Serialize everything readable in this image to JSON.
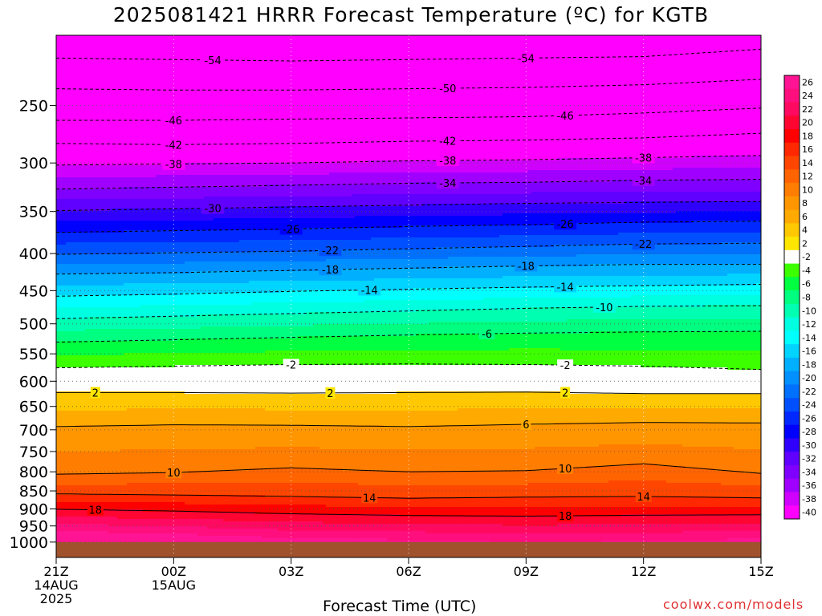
{
  "chart_data": {
    "type": "heatmap",
    "title": "2025081421 HRRR Forecast Temperature (ºC) for KGTB",
    "xlabel": "Forecast Time (UTC)",
    "ylabel": "",
    "credit": "coolwx.com/models",
    "x_ticks": [
      {
        "hours": 0,
        "lines": [
          "21Z",
          "14AUG",
          "2025"
        ]
      },
      {
        "hours": 3,
        "lines": [
          "00Z",
          "15AUG"
        ]
      },
      {
        "hours": 6,
        "lines": [
          "03Z"
        ]
      },
      {
        "hours": 9,
        "lines": [
          "06Z"
        ]
      },
      {
        "hours": 12,
        "lines": [
          "09Z"
        ]
      },
      {
        "hours": 15,
        "lines": [
          "12Z"
        ]
      },
      {
        "hours": 18,
        "lines": [
          "15Z"
        ]
      }
    ],
    "x_range_hours": [
      0,
      18
    ],
    "y_scale": "log-pressure",
    "y_range_hpa": [
      1050,
      200
    ],
    "y_ticks": [
      250,
      300,
      350,
      400,
      450,
      500,
      550,
      600,
      650,
      700,
      750,
      800,
      850,
      900,
      950,
      1000
    ],
    "colorbar_labels": [
      26,
      24,
      22,
      20,
      18,
      16,
      14,
      12,
      10,
      8,
      6,
      4,
      2,
      -2,
      -4,
      -6,
      -8,
      -10,
      -12,
      -14,
      -16,
      -18,
      -20,
      -22,
      -24,
      -26,
      -28,
      -30,
      -32,
      -34,
      -36,
      -38,
      -40
    ],
    "colorbar_colors": [
      "#ff1493",
      "#ff0f7d",
      "#ff0a60",
      "#ff0532",
      "#ff0000",
      "#ff2800",
      "#ff4600",
      "#ff6400",
      "#ff7d00",
      "#ff9600",
      "#ffaa00",
      "#ffc800",
      "#ffe600",
      "#ffffff",
      "#3cff00",
      "#00ff40",
      "#00ff80",
      "#00ffb0",
      "#00ffe0",
      "#00ffff",
      "#00d4ff",
      "#00b0ff",
      "#0090ff",
      "#0070ff",
      "#0050ff",
      "#0028ff",
      "#0000ff",
      "#3000ff",
      "#6000ff",
      "#8000ff",
      "#a000ff",
      "#d000ff",
      "#ff00ff"
    ],
    "surface_color": "#a0522d",
    "surface_pressure_hpa": 1000,
    "contours": [
      {
        "value": -54,
        "labels": [
          {
            "h": 4.0,
            "t": "-54"
          },
          {
            "h": 12.0,
            "t": "-54"
          }
        ],
        "profile": [
          [
            0,
            215
          ],
          [
            3,
            216
          ],
          [
            6,
            217
          ],
          [
            9,
            216
          ],
          [
            12,
            215
          ],
          [
            15,
            214
          ],
          [
            18,
            209
          ]
        ]
      },
      {
        "value": -50,
        "labels": [
          {
            "h": 10.0,
            "t": "-50"
          }
        ],
        "profile": [
          [
            0,
            237
          ],
          [
            3,
            238
          ],
          [
            6,
            238
          ],
          [
            9,
            237
          ],
          [
            12,
            236
          ],
          [
            15,
            234
          ],
          [
            18,
            230
          ]
        ]
      },
      {
        "value": -46,
        "labels": [
          {
            "h": 3.0,
            "t": "-46"
          },
          {
            "h": 13.0,
            "t": "-46"
          }
        ],
        "profile": [
          [
            0,
            262
          ],
          [
            3,
            262
          ],
          [
            6,
            261
          ],
          [
            9,
            260
          ],
          [
            12,
            259
          ],
          [
            15,
            256
          ],
          [
            18,
            252
          ]
        ]
      },
      {
        "value": -42,
        "labels": [
          {
            "h": 3.0,
            "t": "-42"
          },
          {
            "h": 10.0,
            "t": "-42"
          }
        ],
        "profile": [
          [
            0,
            282
          ],
          [
            3,
            283
          ],
          [
            6,
            282
          ],
          [
            9,
            280
          ],
          [
            12,
            279
          ],
          [
            15,
            277
          ],
          [
            18,
            273
          ]
        ]
      },
      {
        "value": -38,
        "labels": [
          {
            "h": 3.0,
            "t": "-38"
          },
          {
            "h": 10.0,
            "t": "-38"
          },
          {
            "h": 15.0,
            "t": "-38"
          }
        ],
        "profile": [
          [
            0,
            302
          ],
          [
            3,
            301
          ],
          [
            6,
            300
          ],
          [
            9,
            298
          ],
          [
            12,
            297
          ],
          [
            15,
            295
          ],
          [
            18,
            293
          ]
        ]
      },
      {
        "value": -34,
        "labels": [
          {
            "h": 10.0,
            "t": "-34"
          },
          {
            "h": 15.0,
            "t": "-34"
          }
        ],
        "profile": [
          [
            0,
            326
          ],
          [
            3,
            324
          ],
          [
            6,
            322
          ],
          [
            9,
            320
          ],
          [
            12,
            319
          ],
          [
            15,
            317
          ],
          [
            18,
            316
          ]
        ]
      },
      {
        "value": -30,
        "labels": [
          {
            "h": 4.0,
            "t": "-30"
          }
        ],
        "profile": [
          [
            0,
            349
          ],
          [
            3,
            347
          ],
          [
            6,
            345
          ],
          [
            9,
            343
          ],
          [
            12,
            341
          ],
          [
            15,
            340
          ],
          [
            18,
            339
          ]
        ]
      },
      {
        "value": -26,
        "labels": [
          {
            "h": 6.0,
            "t": "-26"
          },
          {
            "h": 13.0,
            "t": "-26"
          }
        ],
        "profile": [
          [
            0,
            374
          ],
          [
            3,
            372
          ],
          [
            6,
            370
          ],
          [
            9,
            367
          ],
          [
            12,
            365
          ],
          [
            15,
            362
          ],
          [
            18,
            361
          ]
        ]
      },
      {
        "value": -22,
        "labels": [
          {
            "h": 7.0,
            "t": "-22"
          },
          {
            "h": 15.0,
            "t": "-22"
          }
        ],
        "profile": [
          [
            0,
            401
          ],
          [
            3,
            399
          ],
          [
            6,
            397
          ],
          [
            9,
            394
          ],
          [
            12,
            391
          ],
          [
            15,
            388
          ],
          [
            18,
            387
          ]
        ]
      },
      {
        "value": -18,
        "labels": [
          {
            "h": 7.0,
            "t": "-18"
          },
          {
            "h": 12.0,
            "t": "-18"
          }
        ],
        "profile": [
          [
            0,
            427
          ],
          [
            3,
            425
          ],
          [
            6,
            422
          ],
          [
            9,
            419
          ],
          [
            12,
            416
          ],
          [
            15,
            414
          ],
          [
            18,
            414
          ]
        ]
      },
      {
        "value": -14,
        "labels": [
          {
            "h": 8.0,
            "t": "-14"
          },
          {
            "h": 13.0,
            "t": "-14"
          }
        ],
        "profile": [
          [
            0,
            458
          ],
          [
            3,
            455
          ],
          [
            6,
            451
          ],
          [
            9,
            448
          ],
          [
            12,
            445
          ],
          [
            15,
            443
          ],
          [
            18,
            441
          ]
        ]
      },
      {
        "value": -10,
        "labels": [
          {
            "h": 14.0,
            "t": "-10"
          }
        ],
        "profile": [
          [
            0,
            492
          ],
          [
            3,
            488
          ],
          [
            6,
            484
          ],
          [
            9,
            480
          ],
          [
            12,
            476
          ],
          [
            15,
            473
          ],
          [
            18,
            472
          ]
        ]
      },
      {
        "value": -6,
        "labels": [
          {
            "h": 11.0,
            "t": "-6"
          }
        ],
        "profile": [
          [
            0,
            530
          ],
          [
            3,
            526
          ],
          [
            6,
            522
          ],
          [
            9,
            518
          ],
          [
            12,
            515
          ],
          [
            15,
            513
          ],
          [
            18,
            512
          ]
        ]
      },
      {
        "value": -2,
        "labels": [
          {
            "h": 6.0,
            "t": "-2"
          },
          {
            "h": 13.0,
            "t": "-2"
          }
        ],
        "profile": [
          [
            0,
            575
          ],
          [
            3,
            572
          ],
          [
            6,
            569
          ],
          [
            9,
            568
          ],
          [
            12,
            569
          ],
          [
            15,
            572
          ],
          [
            18,
            578
          ]
        ]
      },
      {
        "value": 2,
        "labels": [
          {
            "h": 1.0,
            "t": "2"
          },
          {
            "h": 7.0,
            "t": "2"
          },
          {
            "h": 13.0,
            "t": "2"
          }
        ],
        "profile": [
          [
            0,
            622
          ],
          [
            3,
            622
          ],
          [
            6,
            623
          ],
          [
            9,
            622
          ],
          [
            12,
            621
          ],
          [
            15,
            624
          ],
          [
            18,
            624
          ]
        ]
      },
      {
        "value": 6,
        "labels": [
          {
            "h": 12.0,
            "t": "6"
          }
        ],
        "profile": [
          [
            0,
            693
          ],
          [
            3,
            689
          ],
          [
            6,
            690
          ],
          [
            9,
            693
          ],
          [
            12,
            688
          ],
          [
            15,
            684
          ],
          [
            18,
            685
          ]
        ]
      },
      {
        "value": 10,
        "labels": [
          {
            "h": 3.0,
            "t": "10"
          },
          {
            "h": 13.0,
            "t": "10"
          }
        ],
        "profile": [
          [
            0,
            806
          ],
          [
            3,
            802
          ],
          [
            6,
            790
          ],
          [
            9,
            800
          ],
          [
            12,
            797
          ],
          [
            15,
            780
          ],
          [
            18,
            804
          ]
        ]
      },
      {
        "value": 14,
        "labels": [
          {
            "h": 8.0,
            "t": "14"
          },
          {
            "h": 15.0,
            "t": "14"
          }
        ],
        "profile": [
          [
            0,
            858
          ],
          [
            3,
            861
          ],
          [
            6,
            865
          ],
          [
            9,
            870
          ],
          [
            12,
            867
          ],
          [
            15,
            865
          ],
          [
            18,
            869
          ]
        ]
      },
      {
        "value": 18,
        "labels": [
          {
            "h": 1.0,
            "t": "18"
          },
          {
            "h": 13.0,
            "t": "18"
          }
        ],
        "profile": [
          [
            0,
            901
          ],
          [
            3,
            906
          ],
          [
            6,
            914
          ],
          [
            9,
            919
          ],
          [
            12,
            921
          ],
          [
            15,
            918
          ],
          [
            18,
            917
          ]
        ]
      }
    ]
  }
}
